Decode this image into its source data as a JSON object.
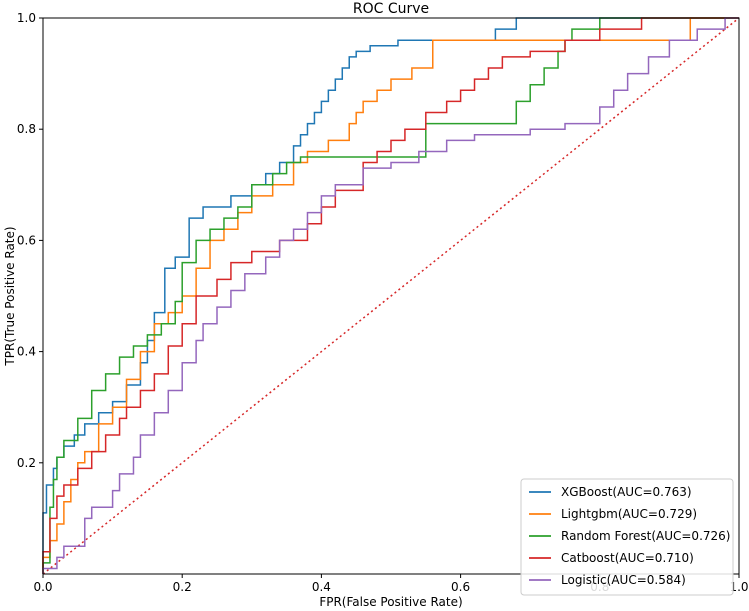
{
  "chart_data": {
    "type": "line",
    "title": "ROC Curve",
    "xlabel": "FPR(False Positive Rate)",
    "ylabel": "TPR(True Positive Rate)",
    "xlim": [
      0,
      1
    ],
    "ylim": [
      0,
      1
    ],
    "x_ticks": [
      "0.0",
      "0.2",
      "0.4",
      "0.6",
      "0.8",
      "1.0"
    ],
    "y_ticks": [
      "0.2",
      "0.4",
      "0.6",
      "0.8",
      "1.0"
    ],
    "grid": false,
    "legend_position": "lower-right",
    "reference_line": {
      "x": [
        0,
        1
      ],
      "y": [
        0,
        1
      ],
      "style": "dotted",
      "color": "#d62728"
    },
    "series": [
      {
        "name": "XGBoost(AUC=0.763)",
        "color": "#1f77b4",
        "x": [
          0,
          0,
          0.005,
          0.005,
          0.015,
          0.015,
          0.02,
          0.02,
          0.03,
          0.03,
          0.045,
          0.045,
          0.06,
          0.06,
          0.08,
          0.08,
          0.1,
          0.1,
          0.12,
          0.12,
          0.14,
          0.14,
          0.15,
          0.15,
          0.16,
          0.16,
          0.175,
          0.175,
          0.19,
          0.19,
          0.21,
          0.21,
          0.23,
          0.23,
          0.27,
          0.27,
          0.3,
          0.3,
          0.32,
          0.32,
          0.34,
          0.34,
          0.36,
          0.36,
          0.37,
          0.37,
          0.38,
          0.38,
          0.39,
          0.39,
          0.4,
          0.4,
          0.41,
          0.41,
          0.42,
          0.42,
          0.43,
          0.43,
          0.44,
          0.44,
          0.45,
          0.45,
          0.47,
          0.47,
          0.51,
          0.51,
          0.56,
          0.56,
          0.65,
          0.65,
          0.68,
          0.68,
          0.76,
          0.76,
          0.8,
          0.8,
          0.82,
          0.82,
          0.88,
          0.88,
          0.96,
          0.96,
          1
        ],
        "y": [
          0,
          0.11,
          0.11,
          0.16,
          0.16,
          0.19,
          0.19,
          0.21,
          0.21,
          0.23,
          0.23,
          0.25,
          0.25,
          0.27,
          0.27,
          0.29,
          0.29,
          0.31,
          0.31,
          0.34,
          0.34,
          0.38,
          0.38,
          0.42,
          0.42,
          0.47,
          0.47,
          0.55,
          0.55,
          0.57,
          0.57,
          0.64,
          0.64,
          0.66,
          0.66,
          0.68,
          0.68,
          0.7,
          0.7,
          0.72,
          0.72,
          0.74,
          0.74,
          0.77,
          0.77,
          0.79,
          0.79,
          0.81,
          0.81,
          0.83,
          0.83,
          0.85,
          0.85,
          0.87,
          0.87,
          0.89,
          0.89,
          0.91,
          0.91,
          0.93,
          0.93,
          0.94,
          0.94,
          0.95,
          0.95,
          0.96,
          0.96,
          0.96,
          0.96,
          0.98,
          0.98,
          1.0,
          1.0,
          1.0,
          1.0,
          1.0,
          1.0,
          1.0,
          1.0,
          1.0,
          1.0,
          1.0,
          1.0
        ]
      },
      {
        "name": "Lightgbm(AUC=0.729)",
        "color": "#ff7f0e",
        "x": [
          0,
          0,
          0.01,
          0.01,
          0.02,
          0.02,
          0.03,
          0.03,
          0.04,
          0.04,
          0.05,
          0.05,
          0.06,
          0.06,
          0.08,
          0.08,
          0.1,
          0.1,
          0.12,
          0.12,
          0.14,
          0.14,
          0.16,
          0.16,
          0.18,
          0.18,
          0.2,
          0.2,
          0.22,
          0.22,
          0.24,
          0.24,
          0.26,
          0.26,
          0.28,
          0.28,
          0.3,
          0.3,
          0.33,
          0.33,
          0.36,
          0.36,
          0.38,
          0.38,
          0.41,
          0.41,
          0.44,
          0.44,
          0.45,
          0.45,
          0.46,
          0.46,
          0.48,
          0.48,
          0.5,
          0.5,
          0.53,
          0.53,
          0.56,
          0.56,
          0.66,
          0.66,
          0.73,
          0.73,
          0.93,
          0.93,
          0.95,
          0.95,
          1
        ],
        "y": [
          0,
          0.03,
          0.03,
          0.06,
          0.06,
          0.09,
          0.09,
          0.13,
          0.13,
          0.17,
          0.17,
          0.2,
          0.2,
          0.22,
          0.22,
          0.27,
          0.27,
          0.3,
          0.3,
          0.35,
          0.35,
          0.4,
          0.4,
          0.45,
          0.45,
          0.47,
          0.47,
          0.5,
          0.5,
          0.55,
          0.55,
          0.6,
          0.6,
          0.62,
          0.62,
          0.65,
          0.65,
          0.68,
          0.68,
          0.7,
          0.7,
          0.74,
          0.74,
          0.76,
          0.76,
          0.78,
          0.78,
          0.81,
          0.81,
          0.83,
          0.83,
          0.85,
          0.85,
          0.87,
          0.87,
          0.89,
          0.89,
          0.91,
          0.91,
          0.96,
          0.96,
          0.96,
          0.96,
          0.96,
          0.96,
          1.0,
          1.0,
          1.0,
          1.0
        ]
      },
      {
        "name": "Random Forest(AUC=0.726)",
        "color": "#2ca02c",
        "x": [
          0,
          0,
          0.01,
          0.01,
          0.015,
          0.015,
          0.02,
          0.02,
          0.03,
          0.03,
          0.05,
          0.05,
          0.07,
          0.07,
          0.09,
          0.09,
          0.11,
          0.11,
          0.13,
          0.13,
          0.15,
          0.15,
          0.17,
          0.17,
          0.19,
          0.19,
          0.2,
          0.2,
          0.22,
          0.22,
          0.24,
          0.24,
          0.26,
          0.26,
          0.28,
          0.28,
          0.3,
          0.3,
          0.33,
          0.33,
          0.35,
          0.35,
          0.37,
          0.37,
          0.4,
          0.4,
          0.48,
          0.48,
          0.55,
          0.55,
          0.62,
          0.62,
          0.68,
          0.68,
          0.7,
          0.7,
          0.72,
          0.72,
          0.74,
          0.74,
          0.75,
          0.75,
          0.76,
          0.76,
          0.8,
          0.8,
          1
        ],
        "y": [
          0,
          0.02,
          0.02,
          0.12,
          0.12,
          0.17,
          0.17,
          0.21,
          0.21,
          0.24,
          0.24,
          0.28,
          0.28,
          0.33,
          0.33,
          0.36,
          0.36,
          0.39,
          0.39,
          0.41,
          0.41,
          0.43,
          0.43,
          0.45,
          0.45,
          0.49,
          0.49,
          0.56,
          0.56,
          0.6,
          0.6,
          0.62,
          0.62,
          0.64,
          0.64,
          0.66,
          0.66,
          0.7,
          0.7,
          0.72,
          0.72,
          0.74,
          0.74,
          0.75,
          0.75,
          0.75,
          0.75,
          0.75,
          0.75,
          0.81,
          0.81,
          0.81,
          0.81,
          0.85,
          0.85,
          0.88,
          0.88,
          0.91,
          0.91,
          0.94,
          0.94,
          0.96,
          0.96,
          0.98,
          0.98,
          1.0,
          1.0
        ]
      },
      {
        "name": "Catboost(AUC=0.710)",
        "color": "#d62728",
        "x": [
          0,
          0,
          0.01,
          0.01,
          0.02,
          0.02,
          0.03,
          0.03,
          0.05,
          0.05,
          0.07,
          0.07,
          0.09,
          0.09,
          0.11,
          0.11,
          0.12,
          0.12,
          0.14,
          0.14,
          0.16,
          0.16,
          0.18,
          0.18,
          0.2,
          0.2,
          0.22,
          0.22,
          0.25,
          0.25,
          0.27,
          0.27,
          0.3,
          0.3,
          0.34,
          0.34,
          0.38,
          0.38,
          0.4,
          0.4,
          0.42,
          0.42,
          0.46,
          0.46,
          0.48,
          0.48,
          0.5,
          0.5,
          0.52,
          0.52,
          0.55,
          0.55,
          0.58,
          0.58,
          0.6,
          0.6,
          0.62,
          0.62,
          0.64,
          0.64,
          0.66,
          0.66,
          0.7,
          0.7,
          0.75,
          0.75,
          0.8,
          0.8,
          0.86,
          0.86,
          0.92,
          0.92,
          0.96,
          0.96,
          1
        ],
        "y": [
          0,
          0.04,
          0.04,
          0.1,
          0.1,
          0.14,
          0.14,
          0.16,
          0.16,
          0.19,
          0.19,
          0.22,
          0.22,
          0.25,
          0.25,
          0.28,
          0.28,
          0.3,
          0.3,
          0.33,
          0.33,
          0.36,
          0.36,
          0.41,
          0.41,
          0.45,
          0.45,
          0.5,
          0.5,
          0.53,
          0.53,
          0.56,
          0.56,
          0.58,
          0.58,
          0.6,
          0.6,
          0.63,
          0.63,
          0.66,
          0.66,
          0.69,
          0.69,
          0.74,
          0.74,
          0.76,
          0.76,
          0.78,
          0.78,
          0.8,
          0.8,
          0.83,
          0.83,
          0.85,
          0.85,
          0.87,
          0.87,
          0.89,
          0.89,
          0.91,
          0.91,
          0.93,
          0.93,
          0.94,
          0.94,
          0.96,
          0.96,
          0.98,
          0.98,
          1.0,
          1.0,
          1.0,
          1.0,
          1.0,
          1.0
        ]
      },
      {
        "name": "Logistic(AUC=0.584)",
        "color": "#9467bd",
        "x": [
          0,
          0,
          0.02,
          0.02,
          0.03,
          0.03,
          0.06,
          0.06,
          0.07,
          0.07,
          0.1,
          0.1,
          0.11,
          0.11,
          0.13,
          0.13,
          0.14,
          0.14,
          0.16,
          0.16,
          0.18,
          0.18,
          0.2,
          0.2,
          0.22,
          0.22,
          0.23,
          0.23,
          0.25,
          0.25,
          0.27,
          0.27,
          0.29,
          0.29,
          0.32,
          0.32,
          0.34,
          0.34,
          0.36,
          0.36,
          0.38,
          0.38,
          0.4,
          0.4,
          0.42,
          0.42,
          0.46,
          0.46,
          0.5,
          0.5,
          0.54,
          0.54,
          0.58,
          0.58,
          0.62,
          0.62,
          0.65,
          0.65,
          0.7,
          0.7,
          0.75,
          0.75,
          0.8,
          0.8,
          0.82,
          0.82,
          0.84,
          0.84,
          0.87,
          0.87,
          0.9,
          0.9,
          0.94,
          0.94,
          0.98,
          0.98,
          1
        ],
        "y": [
          0,
          0.01,
          0.01,
          0.03,
          0.03,
          0.05,
          0.05,
          0.1,
          0.1,
          0.12,
          0.12,
          0.15,
          0.15,
          0.18,
          0.18,
          0.21,
          0.21,
          0.25,
          0.25,
          0.29,
          0.29,
          0.33,
          0.33,
          0.38,
          0.38,
          0.42,
          0.42,
          0.45,
          0.45,
          0.48,
          0.48,
          0.51,
          0.51,
          0.54,
          0.54,
          0.57,
          0.57,
          0.6,
          0.6,
          0.62,
          0.62,
          0.65,
          0.65,
          0.68,
          0.68,
          0.7,
          0.7,
          0.73,
          0.73,
          0.74,
          0.74,
          0.76,
          0.76,
          0.78,
          0.78,
          0.79,
          0.79,
          0.79,
          0.79,
          0.8,
          0.8,
          0.81,
          0.81,
          0.84,
          0.84,
          0.87,
          0.87,
          0.9,
          0.9,
          0.93,
          0.93,
          0.96,
          0.96,
          0.98,
          0.98,
          1.0,
          1.0
        ]
      }
    ]
  }
}
